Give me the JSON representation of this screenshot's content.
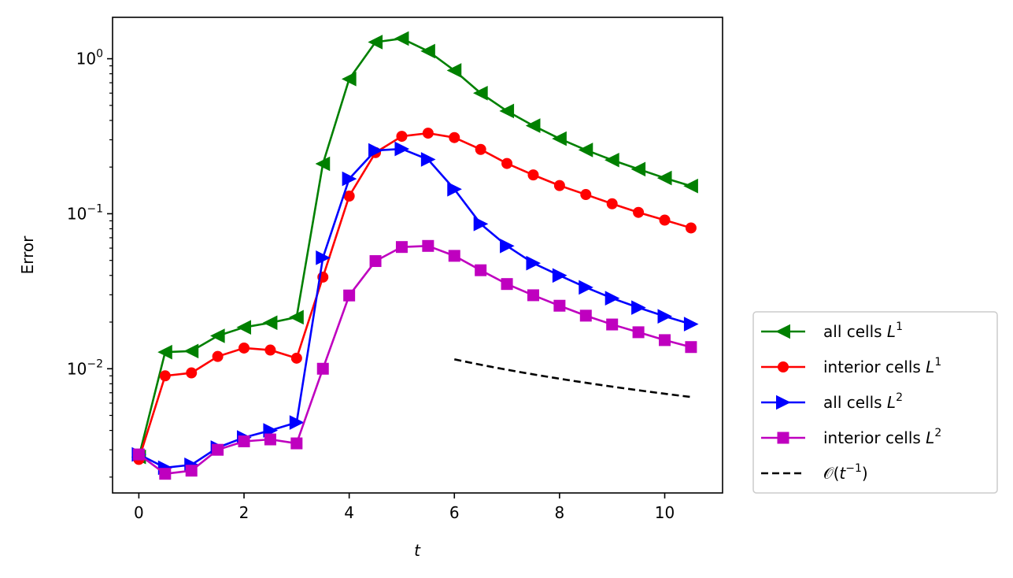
{
  "chart_data": {
    "type": "line",
    "yscale": "log",
    "xlabel": "t",
    "ylabel": "Error",
    "xlim": [
      -0.5,
      11.1
    ],
    "ylim": [
      0.00158,
      1.85
    ],
    "xticks": [
      0,
      2,
      4,
      6,
      8,
      10
    ],
    "xtick_labels": [
      "0",
      "2",
      "4",
      "6",
      "8",
      "10"
    ],
    "yticks": [
      0.01,
      0.1,
      1
    ],
    "ytick_labels": [
      {
        "base": "10",
        "exp": "−2"
      },
      {
        "base": "10",
        "exp": "−1"
      },
      {
        "base": "10",
        "exp": "0"
      }
    ],
    "x": [
      0,
      0.5,
      1,
      1.5,
      2,
      2.5,
      3,
      3.5,
      4,
      4.5,
      5,
      5.5,
      6,
      6.5,
      7,
      7.5,
      8,
      8.5,
      9,
      9.5,
      10,
      10.5
    ],
    "series": [
      {
        "name": "all cells L^1",
        "label_main": "all cells ",
        "label_var": "L",
        "label_sup": "1",
        "color": "#008000",
        "marker": "triangle-left",
        "values": [
          0.0027,
          0.0128,
          0.013,
          0.0163,
          0.0185,
          0.0198,
          0.0215,
          0.21,
          0.74,
          1.28,
          1.35,
          1.12,
          0.84,
          0.6,
          0.46,
          0.37,
          0.305,
          0.258,
          0.222,
          0.194,
          0.17,
          0.151
        ]
      },
      {
        "name": "interior cells L^1",
        "label_main": "interior cells ",
        "label_var": "L",
        "label_sup": "1",
        "color": "#ff0000",
        "marker": "circle",
        "values": [
          0.0026,
          0.009,
          0.0094,
          0.012,
          0.0136,
          0.0132,
          0.0117,
          0.039,
          0.13,
          0.248,
          0.316,
          0.331,
          0.31,
          0.26,
          0.211,
          0.178,
          0.152,
          0.133,
          0.116,
          0.102,
          0.091,
          0.081
        ]
      },
      {
        "name": "all cells L^2",
        "label_main": "all cells ",
        "label_var": "L",
        "label_sup": "2",
        "color": "#0000ff",
        "marker": "triangle-right",
        "values": [
          0.0028,
          0.0023,
          0.0024,
          0.0031,
          0.0036,
          0.004,
          0.0045,
          0.052,
          0.168,
          0.256,
          0.262,
          0.224,
          0.144,
          0.086,
          0.062,
          0.048,
          0.04,
          0.0335,
          0.0285,
          0.0248,
          0.0218,
          0.0194
        ]
      },
      {
        "name": "interior cells L^2",
        "label_main": "interior cells ",
        "label_var": "L",
        "label_sup": "2",
        "color": "#bf00bf",
        "marker": "square",
        "values": [
          0.0028,
          0.0021,
          0.0022,
          0.003,
          0.0034,
          0.0035,
          0.0033,
          0.01,
          0.0297,
          0.0495,
          0.061,
          0.062,
          0.0535,
          0.0432,
          0.0352,
          0.0298,
          0.0255,
          0.022,
          0.0193,
          0.0172,
          0.0153,
          0.0138
        ]
      }
    ],
    "reference": {
      "name": "O(t^-1)",
      "label_main": "𝒪(",
      "label_var": "t",
      "label_sup": "−1",
      "label_tail": ")",
      "color": "#000000",
      "style": "dashed",
      "x_start": 6,
      "x_end": 10.5,
      "y_start": 0.0115
    },
    "legend_position": "outside-lower-right",
    "grid": false
  }
}
